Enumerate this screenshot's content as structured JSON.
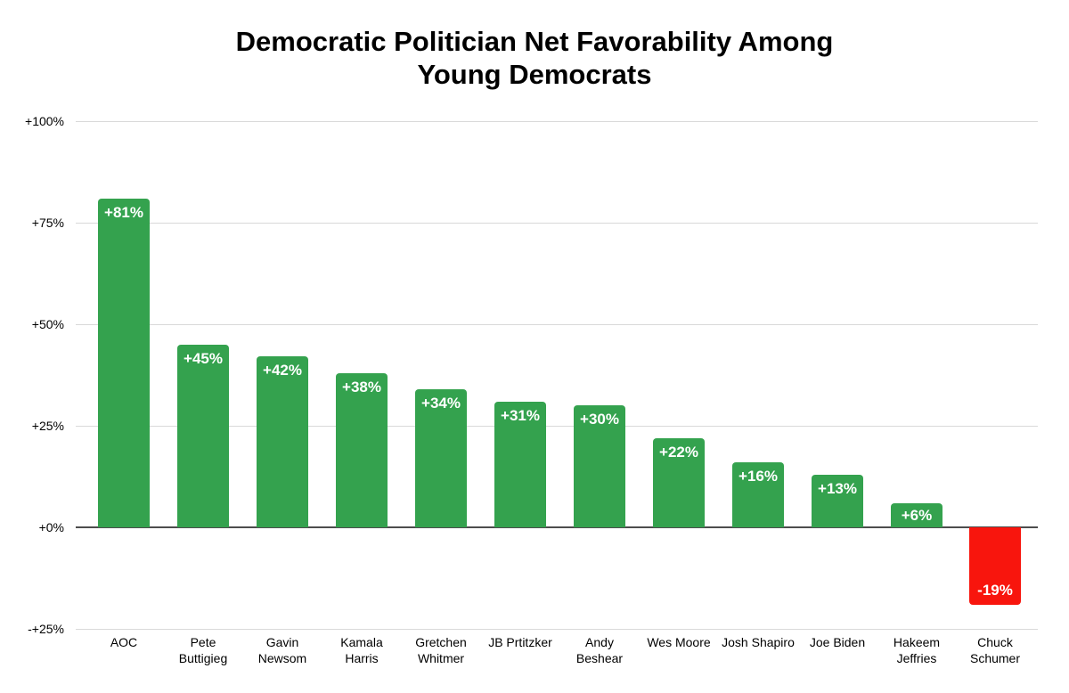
{
  "title": {
    "line1": "Democratic Politician Net Favorability Among",
    "line2": "Young Democrats"
  },
  "chart_data": {
    "type": "bar",
    "title": "Democratic Politician Net Favorability Among Young Democrats",
    "xlabel": "",
    "ylabel": "",
    "categories": [
      "AOC",
      "Pete Buttigieg",
      "Gavin Newsom",
      "Kamala Harris",
      "Gretchen Whitmer",
      "JB Prtitzker",
      "Andy Beshear",
      "Wes Moore",
      "Josh Shapiro",
      "Joe Biden",
      "Hakeem Jeffries",
      "Chuck Schumer"
    ],
    "category_display_lines": [
      [
        "AOC"
      ],
      [
        "Pete",
        "Buttigieg"
      ],
      [
        "Gavin",
        "Newsom"
      ],
      [
        "Kamala",
        "Harris"
      ],
      [
        "Gretchen",
        "Whitmer"
      ],
      [
        "JB Prtitzker"
      ],
      [
        "Andy",
        "Beshear"
      ],
      [
        "Wes Moore"
      ],
      [
        "Josh Shapiro"
      ],
      [
        "Joe Biden"
      ],
      [
        "Hakeem",
        "Jeffries"
      ],
      [
        "Chuck",
        "Schumer"
      ]
    ],
    "values": [
      81,
      45,
      42,
      38,
      34,
      31,
      30,
      22,
      16,
      13,
      6,
      -19
    ],
    "value_labels": [
      "+81%",
      "+45%",
      "+42%",
      "+38%",
      "+34%",
      "+31%",
      "+30%",
      "+22%",
      "+16%",
      "+13%",
      "+6%",
      "-19%"
    ],
    "y_ticks": [
      {
        "label": "+100%",
        "value": 100
      },
      {
        "label": "+75%",
        "value": 75
      },
      {
        "label": "+50%",
        "value": 50
      },
      {
        "label": "+25%",
        "value": 25
      },
      {
        "label": "+0%",
        "value": 0
      },
      {
        "label": "-+25%",
        "value": -25
      }
    ],
    "ylim": [
      -25,
      100
    ],
    "grid": true,
    "legend": false,
    "colors": {
      "bar_positive": "#34a24e",
      "bar_negative": "#f8150d",
      "value_label_text": "#ffffff",
      "gridline": "#d9d9d9",
      "zero_line": "#4d4d4d",
      "axis_text": "#000000",
      "background": "#ffffff"
    }
  }
}
